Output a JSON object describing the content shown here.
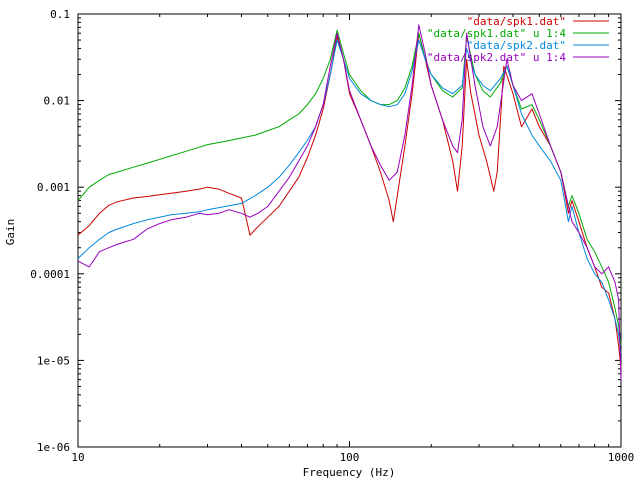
{
  "chart_data": {
    "type": "line",
    "xlabel": "Frequency (Hz)",
    "ylabel": "Gain",
    "xscale": "log",
    "yscale": "log",
    "xlim": [
      10,
      1000
    ],
    "ylim": [
      1e-06,
      0.1
    ],
    "grid": false,
    "legend_position": "top-right",
    "x_ticks": [
      {
        "value": 10,
        "label": "10"
      },
      {
        "value": 100,
        "label": "100"
      },
      {
        "value": 1000,
        "label": "1000"
      }
    ],
    "y_ticks": [
      {
        "value": 0.1,
        "label": "0.1"
      },
      {
        "value": 0.01,
        "label": "0.01"
      },
      {
        "value": 0.001,
        "label": "0.001"
      },
      {
        "value": 0.0001,
        "label": "0.0001"
      },
      {
        "value": 1e-05,
        "label": "1e-05"
      },
      {
        "value": 1e-06,
        "label": "1e-06"
      }
    ],
    "series": [
      {
        "name": "\"data/spk1.dat\"",
        "color": "#cc0000",
        "points": [
          [
            10,
            0.00028
          ],
          [
            11,
            0.00036
          ],
          [
            12,
            0.0005
          ],
          [
            13,
            0.00062
          ],
          [
            14,
            0.00068
          ],
          [
            16,
            0.00075
          ],
          [
            18,
            0.00078
          ],
          [
            20,
            0.00082
          ],
          [
            22,
            0.00085
          ],
          [
            25,
            0.0009
          ],
          [
            28,
            0.00095
          ],
          [
            30,
            0.001
          ],
          [
            33,
            0.00095
          ],
          [
            36,
            0.00085
          ],
          [
            40,
            0.00075
          ],
          [
            43,
            0.00028
          ],
          [
            46,
            0.00035
          ],
          [
            50,
            0.00045
          ],
          [
            55,
            0.0006
          ],
          [
            60,
            0.0009
          ],
          [
            65,
            0.0013
          ],
          [
            70,
            0.0022
          ],
          [
            75,
            0.004
          ],
          [
            80,
            0.008
          ],
          [
            85,
            0.02
          ],
          [
            90,
            0.055
          ],
          [
            95,
            0.03
          ],
          [
            100,
            0.012
          ],
          [
            110,
            0.006
          ],
          [
            120,
            0.003
          ],
          [
            130,
            0.0015
          ],
          [
            140,
            0.0007
          ],
          [
            145,
            0.0004
          ],
          [
            150,
            0.0008
          ],
          [
            160,
            0.003
          ],
          [
            170,
            0.012
          ],
          [
            180,
            0.06
          ],
          [
            190,
            0.03
          ],
          [
            200,
            0.015
          ],
          [
            220,
            0.006
          ],
          [
            240,
            0.002
          ],
          [
            250,
            0.0009
          ],
          [
            260,
            0.003
          ],
          [
            270,
            0.03
          ],
          [
            280,
            0.012
          ],
          [
            300,
            0.004
          ],
          [
            320,
            0.002
          ],
          [
            340,
            0.0009
          ],
          [
            350,
            0.0015
          ],
          [
            370,
            0.025
          ],
          [
            400,
            0.012
          ],
          [
            430,
            0.005
          ],
          [
            470,
            0.008
          ],
          [
            500,
            0.005
          ],
          [
            550,
            0.003
          ],
          [
            600,
            0.0015
          ],
          [
            640,
            0.0005
          ],
          [
            660,
            0.0007
          ],
          [
            700,
            0.0004
          ],
          [
            750,
            0.0002
          ],
          [
            800,
            0.00012
          ],
          [
            850,
            7e-05
          ],
          [
            900,
            6e-05
          ],
          [
            950,
            3e-05
          ],
          [
            980,
            1.5e-05
          ],
          [
            1000,
            8e-06
          ]
        ]
      },
      {
        "name": "\"data/spk1.dat\" u 1:4",
        "color": "#00aa00",
        "points": [
          [
            10,
            0.0007
          ],
          [
            11,
            0.001
          ],
          [
            12,
            0.0012
          ],
          [
            13,
            0.0014
          ],
          [
            14,
            0.0015
          ],
          [
            16,
            0.0017
          ],
          [
            18,
            0.0019
          ],
          [
            20,
            0.0021
          ],
          [
            22,
            0.0023
          ],
          [
            25,
            0.0026
          ],
          [
            28,
            0.0029
          ],
          [
            30,
            0.0031
          ],
          [
            35,
            0.0034
          ],
          [
            40,
            0.0037
          ],
          [
            45,
            0.004
          ],
          [
            50,
            0.0045
          ],
          [
            55,
            0.005
          ],
          [
            60,
            0.006
          ],
          [
            65,
            0.007
          ],
          [
            70,
            0.009
          ],
          [
            75,
            0.012
          ],
          [
            80,
            0.018
          ],
          [
            85,
            0.03
          ],
          [
            90,
            0.065
          ],
          [
            95,
            0.035
          ],
          [
            100,
            0.02
          ],
          [
            110,
            0.013
          ],
          [
            120,
            0.01
          ],
          [
            130,
            0.009
          ],
          [
            140,
            0.009
          ],
          [
            150,
            0.01
          ],
          [
            160,
            0.014
          ],
          [
            170,
            0.025
          ],
          [
            180,
            0.06
          ],
          [
            190,
            0.03
          ],
          [
            200,
            0.02
          ],
          [
            220,
            0.013
          ],
          [
            240,
            0.011
          ],
          [
            260,
            0.014
          ],
          [
            270,
            0.055
          ],
          [
            290,
            0.02
          ],
          [
            310,
            0.013
          ],
          [
            330,
            0.011
          ],
          [
            360,
            0.016
          ],
          [
            380,
            0.025
          ],
          [
            400,
            0.015
          ],
          [
            430,
            0.008
          ],
          [
            470,
            0.009
          ],
          [
            500,
            0.006
          ],
          [
            550,
            0.003
          ],
          [
            600,
            0.0015
          ],
          [
            640,
            0.0006
          ],
          [
            660,
            0.0008
          ],
          [
            700,
            0.0005
          ],
          [
            750,
            0.00025
          ],
          [
            800,
            0.00018
          ],
          [
            850,
            0.00012
          ],
          [
            900,
            8e-05
          ],
          [
            950,
            4e-05
          ],
          [
            980,
            2.5e-05
          ],
          [
            1000,
            1.5e-05
          ]
        ]
      },
      {
        "name": "\"data/spk2.dat\"",
        "color": "#0088dd",
        "points": [
          [
            10,
            0.00015
          ],
          [
            11,
            0.0002
          ],
          [
            12,
            0.00025
          ],
          [
            13,
            0.0003
          ],
          [
            14,
            0.00033
          ],
          [
            16,
            0.00038
          ],
          [
            18,
            0.00042
          ],
          [
            20,
            0.00045
          ],
          [
            22,
            0.00048
          ],
          [
            25,
            0.0005
          ],
          [
            28,
            0.00052
          ],
          [
            30,
            0.00055
          ],
          [
            35,
            0.0006
          ],
          [
            40,
            0.00065
          ],
          [
            45,
            0.0008
          ],
          [
            50,
            0.001
          ],
          [
            55,
            0.0013
          ],
          [
            60,
            0.0018
          ],
          [
            65,
            0.0025
          ],
          [
            70,
            0.0035
          ],
          [
            75,
            0.005
          ],
          [
            80,
            0.009
          ],
          [
            85,
            0.02
          ],
          [
            90,
            0.05
          ],
          [
            95,
            0.03
          ],
          [
            100,
            0.018
          ],
          [
            110,
            0.012
          ],
          [
            120,
            0.01
          ],
          [
            130,
            0.009
          ],
          [
            140,
            0.0085
          ],
          [
            150,
            0.009
          ],
          [
            160,
            0.012
          ],
          [
            170,
            0.022
          ],
          [
            180,
            0.05
          ],
          [
            190,
            0.03
          ],
          [
            200,
            0.02
          ],
          [
            220,
            0.014
          ],
          [
            240,
            0.012
          ],
          [
            260,
            0.015
          ],
          [
            270,
            0.04
          ],
          [
            290,
            0.02
          ],
          [
            310,
            0.015
          ],
          [
            330,
            0.013
          ],
          [
            360,
            0.018
          ],
          [
            380,
            0.025
          ],
          [
            400,
            0.015
          ],
          [
            430,
            0.007
          ],
          [
            470,
            0.004
          ],
          [
            500,
            0.003
          ],
          [
            550,
            0.002
          ],
          [
            600,
            0.0012
          ],
          [
            640,
            0.0004
          ],
          [
            660,
            0.0006
          ],
          [
            700,
            0.0003
          ],
          [
            750,
            0.00015
          ],
          [
            800,
            0.0001
          ],
          [
            850,
            8e-05
          ],
          [
            900,
            5e-05
          ],
          [
            950,
            3e-05
          ],
          [
            980,
            2e-05
          ],
          [
            1000,
            1.2e-05
          ]
        ]
      },
      {
        "name": "\"data/spk2.dat\" u 1:4",
        "color": "#9900bb",
        "points": [
          [
            10,
            0.00014
          ],
          [
            11,
            0.00012
          ],
          [
            12,
            0.00018
          ],
          [
            13,
            0.0002
          ],
          [
            14,
            0.00022
          ],
          [
            16,
            0.00025
          ],
          [
            18,
            0.00033
          ],
          [
            20,
            0.00038
          ],
          [
            22,
            0.00042
          ],
          [
            25,
            0.00045
          ],
          [
            28,
            0.0005
          ],
          [
            30,
            0.00048
          ],
          [
            33,
            0.0005
          ],
          [
            36,
            0.00055
          ],
          [
            40,
            0.0005
          ],
          [
            43,
            0.00045
          ],
          [
            46,
            0.0005
          ],
          [
            50,
            0.0006
          ],
          [
            55,
            0.0009
          ],
          [
            60,
            0.0013
          ],
          [
            65,
            0.002
          ],
          [
            70,
            0.003
          ],
          [
            75,
            0.005
          ],
          [
            80,
            0.009
          ],
          [
            85,
            0.025
          ],
          [
            90,
            0.06
          ],
          [
            95,
            0.03
          ],
          [
            100,
            0.013
          ],
          [
            110,
            0.006
          ],
          [
            120,
            0.003
          ],
          [
            130,
            0.0018
          ],
          [
            140,
            0.0012
          ],
          [
            150,
            0.0015
          ],
          [
            160,
            0.004
          ],
          [
            170,
            0.015
          ],
          [
            180,
            0.075
          ],
          [
            190,
            0.035
          ],
          [
            200,
            0.015
          ],
          [
            220,
            0.006
          ],
          [
            240,
            0.003
          ],
          [
            250,
            0.0025
          ],
          [
            260,
            0.006
          ],
          [
            270,
            0.06
          ],
          [
            290,
            0.015
          ],
          [
            310,
            0.005
          ],
          [
            330,
            0.003
          ],
          [
            350,
            0.005
          ],
          [
            380,
            0.03
          ],
          [
            400,
            0.015
          ],
          [
            430,
            0.01
          ],
          [
            470,
            0.012
          ],
          [
            500,
            0.007
          ],
          [
            550,
            0.003
          ],
          [
            600,
            0.0015
          ],
          [
            640,
            0.0006
          ],
          [
            660,
            0.0004
          ],
          [
            700,
            0.0003
          ],
          [
            750,
            0.0002
          ],
          [
            800,
            0.00012
          ],
          [
            850,
            0.0001
          ],
          [
            900,
            0.00012
          ],
          [
            950,
            8e-05
          ],
          [
            980,
            5e-05
          ],
          [
            1000,
            6e-06
          ]
        ]
      }
    ]
  }
}
